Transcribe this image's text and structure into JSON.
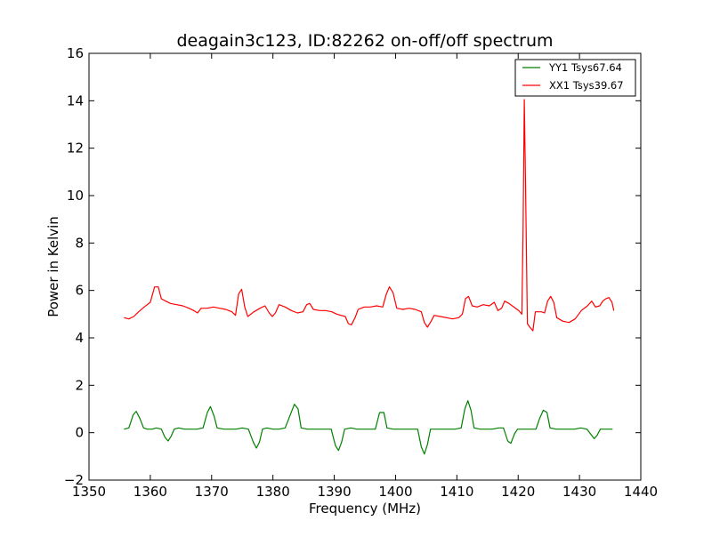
{
  "chart_data": {
    "type": "line",
    "title": "deagain3c123, ID:82262 on-off/off spectrum",
    "xlabel": "Frequency (MHz)",
    "ylabel": "Power in Kelvin",
    "xlim": [
      1350,
      1440
    ],
    "ylim": [
      -2,
      16
    ],
    "xticks": [
      1350,
      1360,
      1370,
      1380,
      1390,
      1400,
      1410,
      1420,
      1430,
      1440
    ],
    "yticks": [
      -2,
      0,
      2,
      4,
      6,
      8,
      10,
      12,
      14,
      16
    ],
    "grid": false,
    "legend": "top-right",
    "series": [
      {
        "name": "YY1 Tsys67.64",
        "color": "#008000",
        "points": [
          [
            1355.7,
            0.15
          ],
          [
            1356.5,
            0.2
          ],
          [
            1357.2,
            0.75
          ],
          [
            1357.7,
            0.9
          ],
          [
            1358.3,
            0.6
          ],
          [
            1358.9,
            0.2
          ],
          [
            1359.5,
            0.15
          ],
          [
            1360.3,
            0.15
          ],
          [
            1361,
            0.2
          ],
          [
            1361.8,
            0.15
          ],
          [
            1362.4,
            -0.2
          ],
          [
            1362.9,
            -0.35
          ],
          [
            1363.4,
            -0.15
          ],
          [
            1363.9,
            0.15
          ],
          [
            1364.6,
            0.2
          ],
          [
            1365.6,
            0.15
          ],
          [
            1366.6,
            0.15
          ],
          [
            1367.6,
            0.15
          ],
          [
            1368.6,
            0.2
          ],
          [
            1369.3,
            0.85
          ],
          [
            1369.8,
            1.1
          ],
          [
            1370.4,
            0.7
          ],
          [
            1370.9,
            0.2
          ],
          [
            1372,
            0.15
          ],
          [
            1373,
            0.15
          ],
          [
            1374,
            0.15
          ],
          [
            1375,
            0.2
          ],
          [
            1376,
            0.15
          ],
          [
            1376.8,
            -0.4
          ],
          [
            1377.3,
            -0.65
          ],
          [
            1377.8,
            -0.4
          ],
          [
            1378.3,
            0.15
          ],
          [
            1379,
            0.2
          ],
          [
            1380,
            0.15
          ],
          [
            1381,
            0.15
          ],
          [
            1382,
            0.2
          ],
          [
            1382.9,
            0.8
          ],
          [
            1383.5,
            1.2
          ],
          [
            1384.1,
            1.0
          ],
          [
            1384.6,
            0.2
          ],
          [
            1385.6,
            0.15
          ],
          [
            1386.6,
            0.15
          ],
          [
            1387.6,
            0.15
          ],
          [
            1388.6,
            0.15
          ],
          [
            1389.5,
            0.15
          ],
          [
            1390.2,
            -0.55
          ],
          [
            1390.7,
            -0.75
          ],
          [
            1391.2,
            -0.4
          ],
          [
            1391.7,
            0.15
          ],
          [
            1392.7,
            0.2
          ],
          [
            1393.7,
            0.15
          ],
          [
            1394.7,
            0.15
          ],
          [
            1395.7,
            0.15
          ],
          [
            1396.7,
            0.15
          ],
          [
            1397.4,
            0.85
          ],
          [
            1398.1,
            0.85
          ],
          [
            1398.6,
            0.2
          ],
          [
            1399.6,
            0.15
          ],
          [
            1400.6,
            0.15
          ],
          [
            1401.6,
            0.15
          ],
          [
            1402.6,
            0.15
          ],
          [
            1403.6,
            0.15
          ],
          [
            1404.2,
            -0.6
          ],
          [
            1404.7,
            -0.9
          ],
          [
            1405.2,
            -0.5
          ],
          [
            1405.7,
            0.15
          ],
          [
            1406.7,
            0.15
          ],
          [
            1407.7,
            0.15
          ],
          [
            1408.7,
            0.15
          ],
          [
            1409.7,
            0.15
          ],
          [
            1410.7,
            0.2
          ],
          [
            1411.3,
            1.0
          ],
          [
            1411.8,
            1.35
          ],
          [
            1412.3,
            0.95
          ],
          [
            1412.8,
            0.2
          ],
          [
            1413.8,
            0.15
          ],
          [
            1414.8,
            0.15
          ],
          [
            1415.8,
            0.15
          ],
          [
            1416.8,
            0.2
          ],
          [
            1417.6,
            0.2
          ],
          [
            1418.3,
            -0.35
          ],
          [
            1418.8,
            -0.45
          ],
          [
            1419.4,
            -0.05
          ],
          [
            1419.9,
            0.15
          ],
          [
            1420.9,
            0.15
          ],
          [
            1421.9,
            0.15
          ],
          [
            1422.9,
            0.15
          ],
          [
            1423.5,
            0.6
          ],
          [
            1424.1,
            0.95
          ],
          [
            1424.7,
            0.85
          ],
          [
            1425.2,
            0.2
          ],
          [
            1426.2,
            0.15
          ],
          [
            1427.2,
            0.15
          ],
          [
            1428.2,
            0.15
          ],
          [
            1429.2,
            0.15
          ],
          [
            1430.2,
            0.2
          ],
          [
            1431.2,
            0.15
          ],
          [
            1431.8,
            -0.05
          ],
          [
            1432.4,
            -0.25
          ],
          [
            1432.9,
            -0.1
          ],
          [
            1433.4,
            0.15
          ],
          [
            1434.4,
            0.15
          ],
          [
            1435.4,
            0.15
          ]
        ]
      },
      {
        "name": "XX1 Tsys39.67",
        "color": "#ff0000",
        "points": [
          [
            1355.7,
            4.85
          ],
          [
            1356.5,
            4.8
          ],
          [
            1357.3,
            4.9
          ],
          [
            1358.1,
            5.1
          ],
          [
            1359,
            5.3
          ],
          [
            1360,
            5.5
          ],
          [
            1360.7,
            6.15
          ],
          [
            1361.3,
            6.15
          ],
          [
            1361.8,
            5.65
          ],
          [
            1362.5,
            5.55
          ],
          [
            1363.3,
            5.45
          ],
          [
            1364.3,
            5.4
          ],
          [
            1365.3,
            5.35
          ],
          [
            1366.3,
            5.25
          ],
          [
            1367.1,
            5.15
          ],
          [
            1367.7,
            5.05
          ],
          [
            1368.3,
            5.25
          ],
          [
            1369.3,
            5.25
          ],
          [
            1370.3,
            5.3
          ],
          [
            1371.3,
            5.25
          ],
          [
            1372.3,
            5.2
          ],
          [
            1373.3,
            5.1
          ],
          [
            1373.9,
            4.95
          ],
          [
            1374.4,
            5.85
          ],
          [
            1374.9,
            6.05
          ],
          [
            1375.4,
            5.3
          ],
          [
            1375.9,
            4.9
          ],
          [
            1376.9,
            5.1
          ],
          [
            1377.9,
            5.25
          ],
          [
            1378.7,
            5.35
          ],
          [
            1379.4,
            5.05
          ],
          [
            1379.9,
            4.9
          ],
          [
            1380.4,
            5.05
          ],
          [
            1381,
            5.4
          ],
          [
            1382,
            5.3
          ],
          [
            1383,
            5.15
          ],
          [
            1384,
            5.05
          ],
          [
            1384.9,
            5.1
          ],
          [
            1385.5,
            5.4
          ],
          [
            1386,
            5.45
          ],
          [
            1386.6,
            5.2
          ],
          [
            1387.6,
            5.15
          ],
          [
            1388.6,
            5.15
          ],
          [
            1389.6,
            5.1
          ],
          [
            1390.4,
            5.0
          ],
          [
            1391.1,
            4.95
          ],
          [
            1391.8,
            4.9
          ],
          [
            1392.3,
            4.6
          ],
          [
            1392.8,
            4.55
          ],
          [
            1393.4,
            4.85
          ],
          [
            1393.9,
            5.2
          ],
          [
            1394.9,
            5.3
          ],
          [
            1395.9,
            5.3
          ],
          [
            1396.9,
            5.35
          ],
          [
            1397.9,
            5.3
          ],
          [
            1398.5,
            5.85
          ],
          [
            1399,
            6.15
          ],
          [
            1399.6,
            5.9
          ],
          [
            1400.2,
            5.25
          ],
          [
            1401.2,
            5.2
          ],
          [
            1402.2,
            5.25
          ],
          [
            1403.2,
            5.2
          ],
          [
            1404.2,
            5.1
          ],
          [
            1404.7,
            4.65
          ],
          [
            1405.2,
            4.45
          ],
          [
            1405.8,
            4.7
          ],
          [
            1406.3,
            4.95
          ],
          [
            1407.3,
            4.9
          ],
          [
            1408.3,
            4.85
          ],
          [
            1409.3,
            4.8
          ],
          [
            1410.3,
            4.85
          ],
          [
            1410.9,
            5.0
          ],
          [
            1411.4,
            5.65
          ],
          [
            1411.9,
            5.75
          ],
          [
            1412.5,
            5.35
          ],
          [
            1413.3,
            5.3
          ],
          [
            1414.3,
            5.4
          ],
          [
            1415.3,
            5.35
          ],
          [
            1416.1,
            5.5
          ],
          [
            1416.7,
            5.15
          ],
          [
            1417.3,
            5.25
          ],
          [
            1417.8,
            5.55
          ],
          [
            1418.5,
            5.45
          ],
          [
            1419.3,
            5.3
          ],
          [
            1420.1,
            5.15
          ],
          [
            1420.6,
            5.0
          ],
          [
            1420.8,
            8.5
          ],
          [
            1421.0,
            14.05
          ],
          [
            1421.2,
            10.5
          ],
          [
            1421.5,
            4.6
          ],
          [
            1421.9,
            4.45
          ],
          [
            1422.4,
            4.3
          ],
          [
            1422.8,
            5.1
          ],
          [
            1423.8,
            5.1
          ],
          [
            1424.3,
            5.05
          ],
          [
            1424.8,
            5.55
          ],
          [
            1425.3,
            5.75
          ],
          [
            1425.8,
            5.5
          ],
          [
            1426.3,
            4.85
          ],
          [
            1427.3,
            4.7
          ],
          [
            1428.3,
            4.65
          ],
          [
            1429.3,
            4.8
          ],
          [
            1430.3,
            5.15
          ],
          [
            1431.3,
            5.35
          ],
          [
            1432,
            5.55
          ],
          [
            1432.6,
            5.3
          ],
          [
            1433.3,
            5.35
          ],
          [
            1433.8,
            5.55
          ],
          [
            1434.3,
            5.65
          ],
          [
            1434.8,
            5.7
          ],
          [
            1435.3,
            5.5
          ],
          [
            1435.6,
            5.15
          ]
        ]
      }
    ]
  }
}
